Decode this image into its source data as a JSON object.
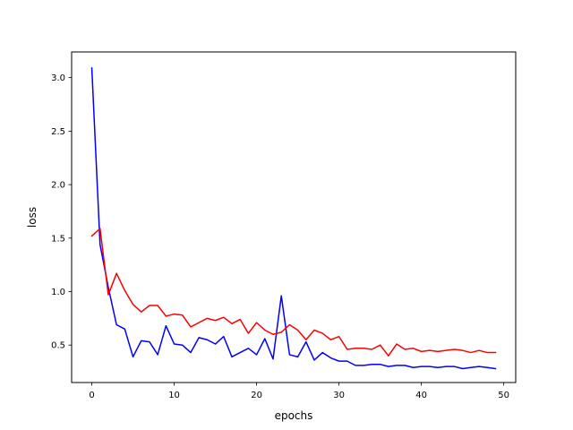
{
  "chart_data": {
    "type": "line",
    "title": "",
    "xlabel": "epochs",
    "ylabel": "loss",
    "xlim": [
      -2.45,
      51.45
    ],
    "ylim": [
      0.15,
      3.24
    ],
    "xticks": [
      0,
      10,
      20,
      30,
      40,
      50
    ],
    "yticks": [
      0.5,
      1.0,
      1.5,
      2.0,
      2.5,
      3.0
    ],
    "xtick_labels": [
      "0",
      "10",
      "20",
      "30",
      "40",
      "50"
    ],
    "ytick_labels": [
      "0.5",
      "1.0",
      "1.5",
      "2.0",
      "2.5",
      "3.0"
    ],
    "grid": false,
    "legend": "none",
    "x": [
      0,
      1,
      2,
      3,
      4,
      5,
      6,
      7,
      8,
      9,
      10,
      11,
      12,
      13,
      14,
      15,
      16,
      17,
      18,
      19,
      20,
      21,
      22,
      23,
      24,
      25,
      26,
      27,
      28,
      29,
      30,
      31,
      32,
      33,
      34,
      35,
      36,
      37,
      38,
      39,
      40,
      41,
      42,
      43,
      44,
      45,
      46,
      47,
      48,
      49
    ],
    "series": [
      {
        "color": "#0000ff",
        "values": [
          3.09,
          1.44,
          1.04,
          0.69,
          0.65,
          0.39,
          0.54,
          0.53,
          0.41,
          0.68,
          0.51,
          0.5,
          0.43,
          0.57,
          0.55,
          0.51,
          0.58,
          0.39,
          0.43,
          0.47,
          0.41,
          0.56,
          0.37,
          0.96,
          0.41,
          0.39,
          0.53,
          0.36,
          0.43,
          0.38,
          0.35,
          0.35,
          0.31,
          0.31,
          0.32,
          0.32,
          0.3,
          0.31,
          0.31,
          0.29,
          0.3,
          0.3,
          0.29,
          0.3,
          0.3,
          0.28,
          0.29,
          0.3,
          0.29,
          0.28
        ]
      },
      {
        "color": "#ff0000",
        "values": [
          1.52,
          1.59,
          0.97,
          1.17,
          1.01,
          0.88,
          0.81,
          0.87,
          0.87,
          0.77,
          0.79,
          0.78,
          0.67,
          0.71,
          0.75,
          0.73,
          0.76,
          0.7,
          0.74,
          0.61,
          0.71,
          0.64,
          0.6,
          0.62,
          0.69,
          0.64,
          0.55,
          0.64,
          0.61,
          0.55,
          0.58,
          0.46,
          0.47,
          0.47,
          0.46,
          0.5,
          0.4,
          0.51,
          0.46,
          0.47,
          0.44,
          0.45,
          0.44,
          0.45,
          0.46,
          0.45,
          0.43,
          0.45,
          0.43,
          0.43
        ]
      }
    ]
  }
}
